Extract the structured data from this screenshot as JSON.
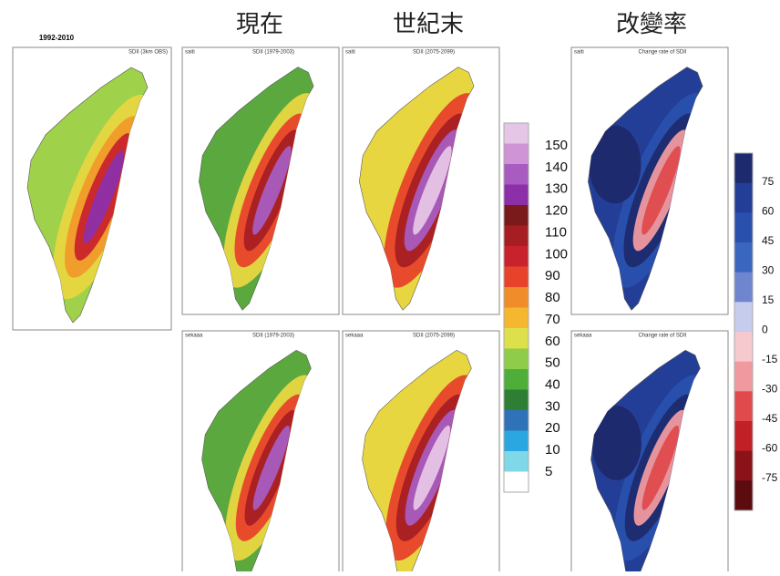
{
  "headers": [
    "現在",
    "世紀末",
    "改變率"
  ],
  "obs_panel": {
    "title": "1992-2010",
    "subtitle": "SDII (3km OBS)"
  },
  "panels": [
    {
      "tag": "saiti",
      "title": "SDII (1979-2003)"
    },
    {
      "tag": "saiti",
      "title": "SDII (2075-2099)"
    },
    {
      "tag": "saiti",
      "title": "Change rate of SDII"
    },
    {
      "tag": "sekaaa",
      "title": "SDII (1979-2003)"
    },
    {
      "tag": "sekaaa",
      "title": "SDII (2075-2099)"
    },
    {
      "tag": "sekaaa",
      "title": "Change rate of SDII"
    }
  ],
  "colorbar_sdii": {
    "labels": [
      150,
      140,
      130,
      120,
      110,
      100,
      90,
      80,
      70,
      60,
      50,
      40,
      30,
      20,
      10,
      5
    ],
    "colors": [
      "#e6c6e6",
      "#cf94d6",
      "#a85cbf",
      "#8c2fa8",
      "#7a1a1a",
      "#a61e23",
      "#c8232c",
      "#e8432a",
      "#f08c2a",
      "#f5b730",
      "#dde04a",
      "#8fcc4a",
      "#4fae3a",
      "#2e7f34",
      "#2f72b8",
      "#2aa7e0",
      "#7fd8e8",
      "#ffffff"
    ]
  },
  "colorbar_change": {
    "labels": [
      75,
      60,
      45,
      30,
      15,
      0,
      -15,
      -30,
      -45,
      -60,
      -75
    ],
    "colors": [
      "#1e2a6e",
      "#233e96",
      "#2a50ad",
      "#3b66c0",
      "#6f86cf",
      "#c5ccec",
      "#f6c9cf",
      "#f09aa0",
      "#e04a4d",
      "#c02026",
      "#8a1218",
      "#5c0b0f"
    ]
  }
}
